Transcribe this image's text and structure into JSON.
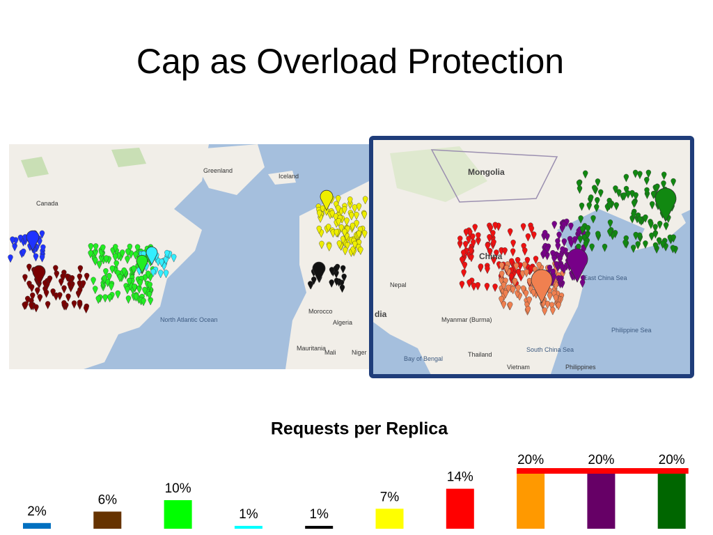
{
  "title": "Cap as Overload Protection",
  "map": {
    "labels": [
      "Canada",
      "Greenland",
      "Iceland",
      "North Atlantic Ocean",
      "Morocco",
      "Algeria",
      "Mauritania",
      "Mali",
      "Niger",
      "Mongolia",
      "China",
      "Nepal",
      "dia",
      "Myanmar (Burma)",
      "Bay of Bengal",
      "Thailand",
      "Vietnam",
      "South China Sea",
      "East China Sea",
      "Philippine Sea",
      "Philippines"
    ]
  },
  "chart_data": {
    "type": "bar",
    "title": "Requests per Replica",
    "values": [
      2,
      6,
      10,
      1,
      1,
      7,
      14,
      20,
      20,
      20
    ],
    "value_labels": [
      "2%",
      "6%",
      "10%",
      "1%",
      "1%",
      "7%",
      "14%",
      "20%",
      "20%",
      "20%"
    ],
    "colors": [
      "#0070c0",
      "#663300",
      "#00ff00",
      "#00ffff",
      "#000000",
      "#ffff00",
      "#ff0000",
      "#ff9900",
      "#660066",
      "#006600"
    ],
    "cap_line": {
      "value": 20,
      "color": "#ff0000"
    }
  }
}
